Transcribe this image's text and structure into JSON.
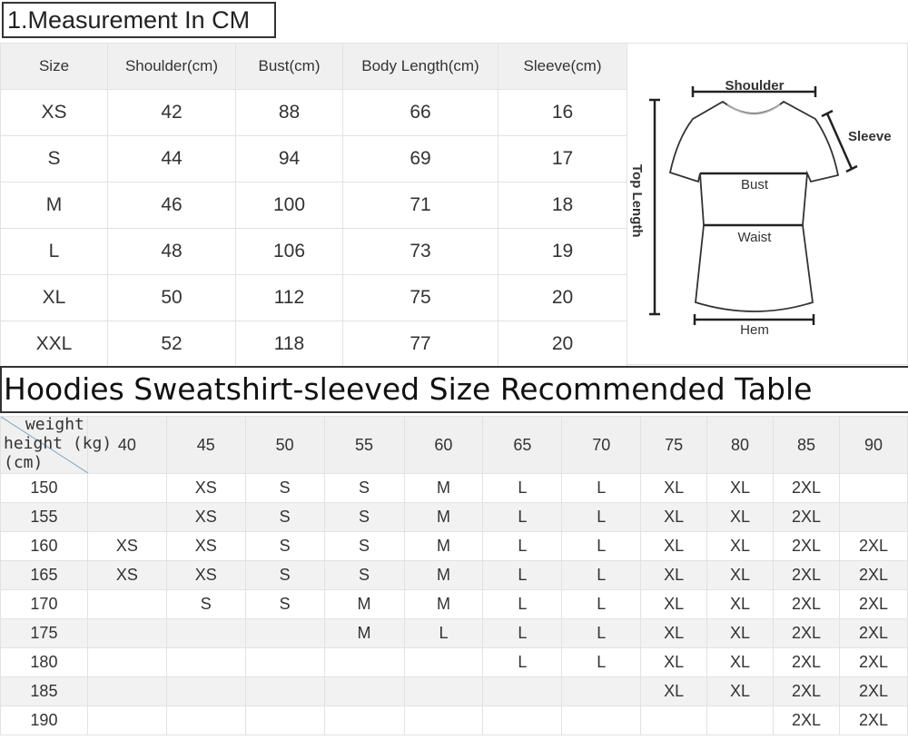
{
  "title1": "1.Measurement In CM",
  "measurement": {
    "headers": [
      "Size",
      "Shoulder(cm)",
      "Bust(cm)",
      "Body Length(cm)",
      "Sleeve(cm)"
    ],
    "rows": [
      [
        "XS",
        "42",
        "88",
        "66",
        "16"
      ],
      [
        "S",
        "44",
        "94",
        "69",
        "17"
      ],
      [
        "M",
        "46",
        "100",
        "71",
        "18"
      ],
      [
        "L",
        "48",
        "106",
        "73",
        "19"
      ],
      [
        "XL",
        "50",
        "112",
        "75",
        "20"
      ],
      [
        "XXL",
        "52",
        "118",
        "77",
        "20"
      ]
    ]
  },
  "diagram": {
    "shoulder": "Shoulder",
    "sleeve": "Sleeve",
    "bust": "Bust",
    "waist": "Waist",
    "hem": "Hem",
    "top_length": "Top Length"
  },
  "title2": "Hoodies Sweatshirt-sleeved Size Recommended Table",
  "recommend": {
    "corner": {
      "weight": "weight",
      "height": "height (kg)",
      "cm": "(cm)"
    },
    "weights": [
      "40",
      "45",
      "50",
      "55",
      "60",
      "65",
      "70",
      "75",
      "80",
      "85",
      "90"
    ],
    "rows": [
      [
        "150",
        "",
        "XS",
        "S",
        "S",
        "M",
        "L",
        "L",
        "XL",
        "XL",
        "2XL",
        ""
      ],
      [
        "155",
        "",
        "XS",
        "S",
        "S",
        "M",
        "L",
        "L",
        "XL",
        "XL",
        "2XL",
        ""
      ],
      [
        "160",
        "XS",
        "XS",
        "S",
        "S",
        "M",
        "L",
        "L",
        "XL",
        "XL",
        "2XL",
        "2XL"
      ],
      [
        "165",
        "XS",
        "XS",
        "S",
        "S",
        "M",
        "L",
        "L",
        "XL",
        "XL",
        "2XL",
        "2XL"
      ],
      [
        "170",
        "",
        "S",
        "S",
        "M",
        "M",
        "L",
        "L",
        "XL",
        "XL",
        "2XL",
        "2XL"
      ],
      [
        "175",
        "",
        "",
        "",
        "M",
        "L",
        "L",
        "L",
        "XL",
        "XL",
        "2XL",
        "2XL"
      ],
      [
        "180",
        "",
        "",
        "",
        "",
        "",
        "L",
        "L",
        "XL",
        "XL",
        "2XL",
        "2XL"
      ],
      [
        "185",
        "",
        "",
        "",
        "",
        "",
        "",
        "",
        "XL",
        "XL",
        "2XL",
        "2XL"
      ],
      [
        "190",
        "",
        "",
        "",
        "",
        "",
        "",
        "",
        "",
        "",
        "2XL",
        "2XL"
      ]
    ]
  }
}
